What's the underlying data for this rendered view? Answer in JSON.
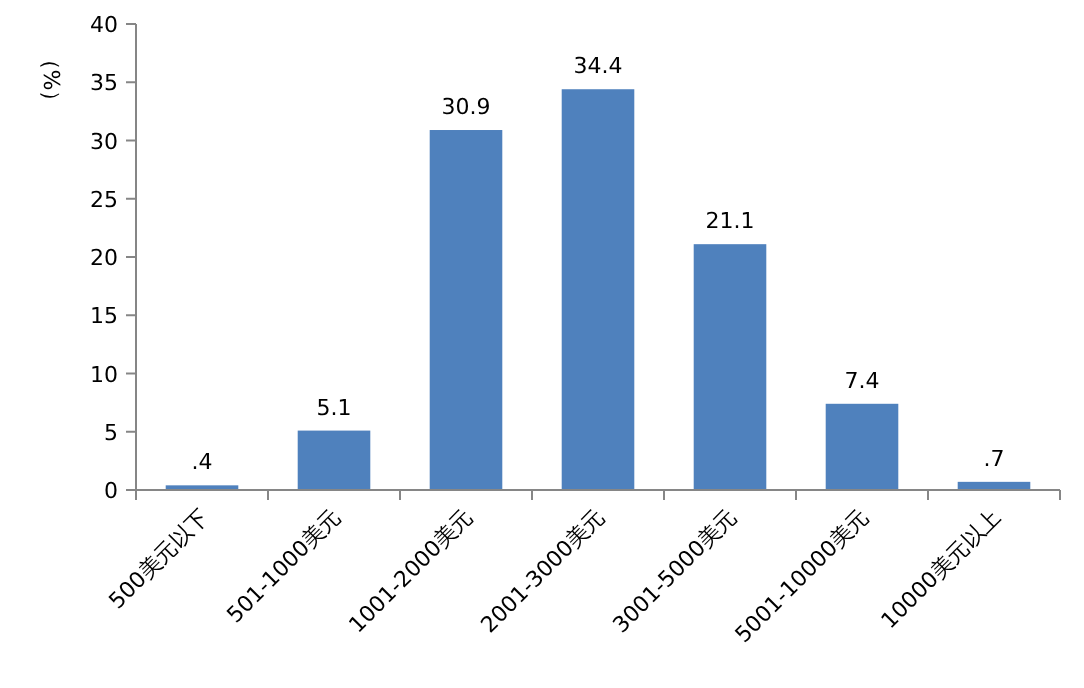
{
  "chart_data": {
    "type": "bar",
    "ylabel": "（%）",
    "categories": [
      "500美元以下",
      "501-1000美元",
      "1001-2000美元",
      "2001-3000美元",
      "3001-5000美元",
      "5001-10000美元",
      "10000美元以上"
    ],
    "values": [
      0.4,
      5.1,
      30.9,
      34.4,
      21.1,
      7.4,
      0.7
    ],
    "value_labels": [
      ".4",
      "5.1",
      "30.9",
      "34.4",
      "21.1",
      "7.4",
      ".7"
    ],
    "color": "#4f81bd",
    "ylim": [
      0,
      40
    ],
    "yticks": [
      0,
      5,
      10,
      15,
      20,
      25,
      30,
      35,
      40
    ],
    "grid": false
  }
}
